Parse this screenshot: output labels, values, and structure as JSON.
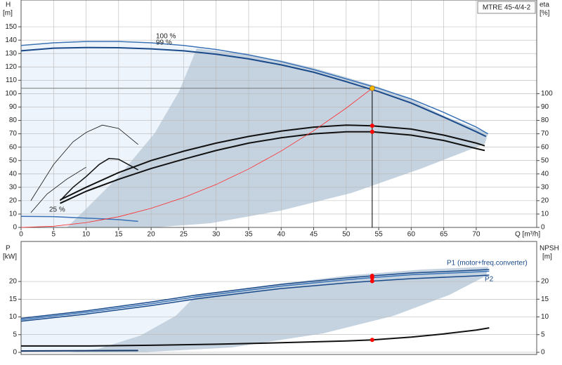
{
  "chart_data": [
    {
      "type": "line",
      "title": "MTRE 45-4/4-2",
      "ylabel": "H",
      "yunit": "[m]",
      "y2label": "eta",
      "y2unit": "[%]",
      "xlabel": "Q [m³/h]",
      "xlim": [
        0,
        79.3
      ],
      "xticks": [
        0,
        5,
        10,
        15,
        20,
        25,
        30,
        35,
        40,
        45,
        50,
        55,
        60,
        65,
        70
      ],
      "ylim": [
        0,
        170
      ],
      "yticks": [
        0,
        10,
        20,
        30,
        40,
        50,
        60,
        70,
        80,
        90,
        100,
        110,
        120,
        130,
        140,
        150
      ],
      "y2lim": [
        0,
        170
      ],
      "y2ticks": [
        0,
        10,
        20,
        30,
        40,
        50,
        60,
        70,
        80,
        90,
        100
      ],
      "grid": true,
      "series": [
        {
          "name": "100 %",
          "color": "#3a72b5",
          "width": 1.5,
          "x": [
            0,
            5,
            10,
            15,
            20,
            25,
            30,
            35,
            40,
            45,
            50,
            55,
            60,
            65,
            70,
            71.8
          ],
          "values": [
            136,
            138,
            139,
            139,
            138,
            136,
            133,
            129,
            124,
            118,
            111,
            104,
            96,
            86,
            75,
            70
          ]
        },
        {
          "name": "99 %",
          "color": "#1a4a8a",
          "width": 2,
          "x": [
            0,
            5,
            10,
            15,
            20,
            25,
            30,
            35,
            40,
            45,
            50,
            55,
            60,
            65,
            70,
            71.5
          ],
          "values": [
            132,
            134,
            134.5,
            134.3,
            133.5,
            132,
            129.5,
            126,
            121.5,
            116,
            109,
            101.5,
            93,
            82.5,
            71.5,
            68
          ]
        },
        {
          "name": "25 %",
          "color": "#3a72b5",
          "width": 1.5,
          "x": [
            0,
            5,
            10,
            15,
            18
          ],
          "values": [
            8.3,
            8.1,
            7,
            5.8,
            4.5
          ]
        },
        {
          "color": "#111111",
          "width": 2,
          "axis": "y2",
          "x": [
            6,
            10,
            15,
            20,
            25,
            30,
            35,
            40,
            45,
            50,
            54,
            60,
            65,
            70,
            71.3
          ],
          "values": [
            20.5,
            30,
            41,
            50,
            57,
            63,
            68,
            72,
            75,
            76.5,
            76,
            73.5,
            69,
            63,
            61
          ]
        },
        {
          "color": "#111111",
          "width": 2,
          "axis": "y2",
          "x": [
            6,
            10,
            15,
            20,
            25,
            30,
            35,
            40,
            45,
            50,
            54,
            60,
            65,
            70,
            71.3
          ],
          "values": [
            18,
            27,
            36,
            44,
            51,
            57.5,
            63,
            67,
            70,
            71.5,
            71.5,
            69,
            65,
            59,
            57.5
          ]
        },
        {
          "color": "#111111",
          "width": 0.8,
          "axis": "y2",
          "x": [
            1.5,
            5,
            8,
            10,
            12.5,
            15,
            18
          ],
          "values": [
            20,
            47,
            64,
            71,
            76.5,
            74,
            62
          ]
        },
        {
          "color": "#111111",
          "width": 0.8,
          "axis": "y2",
          "x": [
            1.5,
            4,
            7,
            10
          ],
          "values": [
            11,
            25,
            36,
            45
          ]
        },
        {
          "color": "#111111",
          "width": 1.5,
          "axis": "y2",
          "x": [
            6,
            8,
            10,
            12,
            13.5,
            15,
            18
          ],
          "values": [
            20,
            30,
            38,
            47,
            51.5,
            51,
            43
          ]
        },
        {
          "color": "#ff2a2a",
          "width": 0.8,
          "x": [
            0,
            5,
            10,
            15,
            20,
            25,
            30,
            35,
            40,
            45,
            50,
            54
          ],
          "values": [
            0,
            0.9,
            3.6,
            8,
            14.3,
            22.3,
            32.1,
            43.7,
            57.1,
            72.3,
            89.2,
            104
          ]
        }
      ],
      "operating_point": {
        "x": 54,
        "y": 104,
        "color": "#f5b800"
      },
      "markers": [
        {
          "x": 54,
          "y": 76,
          "axis": "y2",
          "color": "#ff0000"
        },
        {
          "x": 54,
          "y": 71.5,
          "axis": "y2",
          "color": "#ff0000"
        }
      ]
    },
    {
      "type": "line",
      "ylabel": "P",
      "yunit": "[kW]",
      "y2label": "NPSH",
      "y2unit": "[m]",
      "xlim": [
        0,
        79.3
      ],
      "ylim": [
        -0.6,
        31.3
      ],
      "yticks": [
        0,
        5,
        10,
        15,
        20
      ],
      "y2lim": [
        -0.6,
        31.3
      ],
      "y2ticks": [
        0,
        5,
        10,
        15,
        20
      ],
      "grid": true,
      "series": [
        {
          "name": "P1 (motor+freq.converter)",
          "color": "#1a4a8a",
          "width": 1.5,
          "x": [
            0,
            10,
            20,
            27,
            30,
            40,
            50,
            54,
            60,
            70,
            72
          ],
          "values": [
            9.6,
            11.7,
            14.2,
            16.2,
            16.9,
            19.2,
            21,
            21.6,
            22.4,
            23.2,
            23.4
          ]
        },
        {
          "color": "#3a72b5",
          "width": 1.5,
          "x": [
            0,
            10,
            20,
            27,
            30,
            40,
            50,
            54,
            60,
            70,
            72
          ],
          "values": [
            9.2,
            11.3,
            13.7,
            15.7,
            16.4,
            18.7,
            20.5,
            21.1,
            21.9,
            22.7,
            22.9
          ]
        },
        {
          "name": "P2",
          "color": "#1a4a8a",
          "width": 1.5,
          "x": [
            0,
            10,
            20,
            27,
            30,
            40,
            50,
            54,
            60,
            70,
            72
          ],
          "values": [
            8.8,
            10.8,
            13.2,
            15.1,
            15.8,
            18,
            19.6,
            20.1,
            20.8,
            21.6,
            21.8
          ]
        },
        {
          "color": "#1a3a6a",
          "width": 2,
          "x": [
            0,
            18
          ],
          "values": [
            0.4,
            0.5
          ]
        },
        {
          "color": "#111111",
          "width": 2,
          "axis": "y2",
          "x": [
            0,
            10,
            20,
            30,
            40,
            50,
            54,
            60,
            65,
            70,
            72
          ],
          "values": [
            1.8,
            1.8,
            2,
            2.3,
            2.7,
            3.2,
            3.5,
            4.3,
            5.2,
            6.3,
            6.9
          ]
        }
      ],
      "markers": [
        {
          "x": 54,
          "y": 21.6,
          "color": "#ff0000"
        },
        {
          "x": 54,
          "y": 21.1,
          "color": "#ff0000"
        },
        {
          "x": 54,
          "y": 20.1,
          "color": "#ff0000"
        },
        {
          "x": 54,
          "y": 3.5,
          "axis": "y2",
          "color": "#ff0000"
        }
      ]
    }
  ]
}
